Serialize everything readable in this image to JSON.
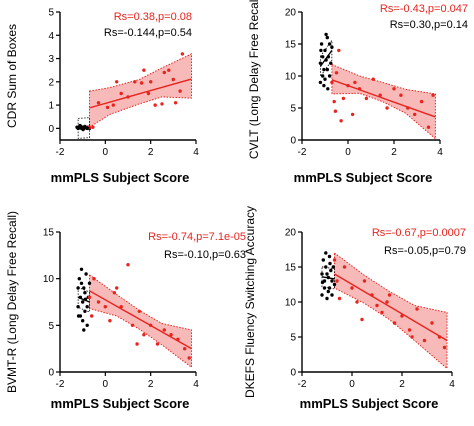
{
  "colors": {
    "red": "#e8241f",
    "black": "#000000",
    "band": "#f4a3a0",
    "axis": "#000000"
  },
  "chart_data": [
    {
      "type": "scatter",
      "xlabel": "mmPLS Subject Score",
      "ylabel": "CDR Sum of Boxes",
      "xlim": [
        -2,
        4
      ],
      "ylim": [
        -0.5,
        5
      ],
      "xticks": [
        -2,
        0,
        2,
        4
      ],
      "yticks": [
        0,
        1,
        2,
        3,
        4,
        5
      ],
      "xtick_labels": [
        "-2",
        "0",
        "2",
        "4"
      ],
      "ytick_labels": [
        "0",
        "1",
        "2",
        "3",
        "4",
        "5"
      ],
      "stats": [
        {
          "text": "Rs=0.38,p=0.08",
          "color": "red"
        },
        {
          "text": "Rs=-0.144,p=0.54",
          "color": "black"
        }
      ],
      "fits": {
        "black": {
          "x": [
            -1.2,
            -0.7
          ],
          "y": [
            0.0,
            0.03
          ]
        },
        "red": {
          "x": [
            -0.7,
            3.8
          ],
          "y": [
            0.88,
            2.12
          ]
        }
      },
      "band_red": {
        "x": [
          -0.7,
          0.2,
          1.5,
          2.5,
          3.8
        ],
        "upper": [
          1.6,
          1.75,
          2.1,
          2.6,
          3.2
        ],
        "lower": [
          0.05,
          0.6,
          1.05,
          1.35,
          1.3
        ]
      },
      "series": [
        {
          "color": "black",
          "points": [
            [
              -1.25,
              0.05
            ],
            [
              -1.2,
              0.0
            ],
            [
              -1.15,
              0.02
            ],
            [
              -1.1,
              0.1
            ],
            [
              -1.05,
              0.0
            ],
            [
              -1.0,
              0.05
            ],
            [
              -0.95,
              0.0
            ],
            [
              -0.9,
              0.08
            ],
            [
              -0.85,
              0.02
            ],
            [
              -0.8,
              0.0
            ],
            [
              -0.75,
              0.05
            ],
            [
              -0.7,
              0.0
            ],
            [
              -1.12,
              0.12
            ],
            [
              -0.98,
              -0.05
            ]
          ]
        },
        {
          "color": "red",
          "points": [
            [
              -0.7,
              0.05
            ],
            [
              -0.55,
              0.05
            ],
            [
              -0.3,
              1.1
            ],
            [
              0.1,
              0.9
            ],
            [
              0.35,
              1.0
            ],
            [
              0.7,
              1.5
            ],
            [
              1.0,
              1.35
            ],
            [
              1.3,
              2.0
            ],
            [
              1.6,
              1.95
            ],
            [
              1.9,
              1.5
            ],
            [
              2.2,
              1.0
            ],
            [
              2.6,
              2.4
            ],
            [
              3.0,
              2.1
            ],
            [
              3.3,
              1.6
            ],
            [
              3.4,
              3.2
            ],
            [
              2.8,
              2.5
            ],
            [
              0.5,
              2.0
            ],
            [
              1.7,
              2.5
            ],
            [
              2.0,
              2.0
            ],
            [
              2.5,
              1.05
            ],
            [
              3.1,
              1.1
            ]
          ]
        }
      ]
    },
    {
      "type": "scatter",
      "xlabel": "mmPLS Subject Score",
      "ylabel": "CVLT (Long Delay Free Recall)",
      "xlim": [
        -2,
        4
      ],
      "ylim": [
        0,
        20
      ],
      "xticks": [
        -2,
        0,
        2,
        4
      ],
      "yticks": [
        0,
        5,
        10,
        15,
        20
      ],
      "xtick_labels": [
        "-2",
        "0",
        "2",
        "4"
      ],
      "ytick_labels": [
        "0",
        "5",
        "10",
        "15",
        "20"
      ],
      "stats": [
        {
          "text": "Rs=-0.43,p=0.047",
          "color": "red"
        },
        {
          "text": "Rs=0.30,p=0.14",
          "color": "black"
        }
      ],
      "fits": {
        "black": {
          "x": [
            -1.2,
            -0.7
          ],
          "y": [
            11.5,
            14.0
          ]
        },
        "red": {
          "x": [
            -0.7,
            3.8
          ],
          "y": [
            9.4,
            3.6
          ]
        }
      },
      "band_red": {
        "x": [
          -0.7,
          0.5,
          1.5,
          2.5,
          3.8
        ],
        "upper": [
          11.8,
          10.0,
          9.0,
          7.9,
          7.2
        ],
        "lower": [
          7.2,
          7.3,
          6.0,
          4.2,
          0.2
        ]
      },
      "series": [
        {
          "color": "black",
          "points": [
            [
              -1.2,
              9.0
            ],
            [
              -1.2,
              12.0
            ],
            [
              -1.15,
              15.0
            ],
            [
              -1.1,
              10.0
            ],
            [
              -1.1,
              13.0
            ],
            [
              -1.05,
              11.0
            ],
            [
              -1.0,
              14.0
            ],
            [
              -1.0,
              9.5
            ],
            [
              -0.95,
              12.5
            ],
            [
              -0.9,
              16.0
            ],
            [
              -0.9,
              11.0
            ],
            [
              -0.85,
              13.0
            ],
            [
              -0.8,
              15.0
            ],
            [
              -0.8,
              10.0
            ],
            [
              -0.75,
              12.0
            ],
            [
              -0.7,
              14.5
            ],
            [
              -1.05,
              8.5
            ],
            [
              -0.95,
              16.5
            ],
            [
              -1.18,
              14.0
            ],
            [
              -0.88,
              8.0
            ]
          ]
        },
        {
          "color": "red",
          "points": [
            [
              -0.7,
              9.0
            ],
            [
              -0.6,
              6.0
            ],
            [
              -0.5,
              10.5
            ],
            [
              -0.4,
              14.0
            ],
            [
              -0.3,
              3.0
            ],
            [
              0.0,
              8.5
            ],
            [
              0.3,
              9.0
            ],
            [
              0.5,
              8.0
            ],
            [
              0.8,
              6.5
            ],
            [
              1.1,
              9.5
            ],
            [
              1.4,
              7.0
            ],
            [
              1.7,
              5.0
            ],
            [
              2.0,
              8.0
            ],
            [
              2.3,
              7.0
            ],
            [
              2.6,
              5.0
            ],
            [
              2.9,
              4.0
            ],
            [
              3.2,
              6.0
            ],
            [
              3.5,
              2.0
            ],
            [
              3.7,
              7.0
            ],
            [
              0.2,
              4.0
            ],
            [
              -0.2,
              6.5
            ],
            [
              -0.55,
              4.5
            ]
          ]
        }
      ]
    },
    {
      "type": "scatter",
      "xlabel": "mmPLS Subject Score",
      "ylabel": "BVMT-R (Long Delay Free Recall)",
      "xlim": [
        -2,
        4
      ],
      "ylim": [
        0,
        15
      ],
      "xticks": [
        -2,
        0,
        2,
        4
      ],
      "yticks": [
        0,
        5,
        10,
        15
      ],
      "xtick_labels": [
        "-2",
        "0",
        "2",
        "4"
      ],
      "ytick_labels": [
        "0",
        "5",
        "10",
        "15"
      ],
      "stats": [
        {
          "text": "Rs=-0.74,p=7.1e-05",
          "color": "red"
        },
        {
          "text": "Rs=-0.10,p=0.63",
          "color": "black"
        }
      ],
      "fits": {
        "black": {
          "x": [
            -1.2,
            -0.7
          ],
          "y": [
            8.0,
            7.5
          ]
        },
        "red": {
          "x": [
            -0.7,
            3.8
          ],
          "y": [
            8.7,
            2.5
          ]
        }
      },
      "band_red": {
        "x": [
          -0.7,
          0.5,
          1.5,
          2.5,
          3.8
        ],
        "upper": [
          10.4,
          8.3,
          6.6,
          5.2,
          4.5
        ],
        "lower": [
          6.8,
          6.0,
          4.6,
          2.9,
          0.5
        ]
      },
      "series": [
        {
          "color": "black",
          "points": [
            [
              -1.2,
              9.0
            ],
            [
              -1.2,
              7.0
            ],
            [
              -1.15,
              10.0
            ],
            [
              -1.1,
              8.0
            ],
            [
              -1.1,
              6.0
            ],
            [
              -1.05,
              9.5
            ],
            [
              -1.0,
              7.5
            ],
            [
              -1.0,
              5.5
            ],
            [
              -0.95,
              9.0
            ],
            [
              -0.9,
              8.5
            ],
            [
              -0.9,
              6.5
            ],
            [
              -0.85,
              10.5
            ],
            [
              -0.8,
              7.0
            ],
            [
              -0.8,
              5.0
            ],
            [
              -0.75,
              8.0
            ],
            [
              -0.7,
              9.5
            ],
            [
              -1.05,
              11.0
            ],
            [
              -0.95,
              4.5
            ],
            [
              -1.18,
              6.0
            ],
            [
              -0.88,
              7.8
            ]
          ]
        },
        {
          "color": "red",
          "points": [
            [
              -0.7,
              8.0
            ],
            [
              -0.6,
              6.0
            ],
            [
              -0.5,
              10.0
            ],
            [
              -0.3,
              7.5
            ],
            [
              0.0,
              7.0
            ],
            [
              0.2,
              5.5
            ],
            [
              0.5,
              9.0
            ],
            [
              0.7,
              7.0
            ],
            [
              1.0,
              11.5
            ],
            [
              1.2,
              5.0
            ],
            [
              1.5,
              6.5
            ],
            [
              1.7,
              4.0
            ],
            [
              2.0,
              5.0
            ],
            [
              2.3,
              3.0
            ],
            [
              2.6,
              4.5
            ],
            [
              2.9,
              4.0
            ],
            [
              3.2,
              3.5
            ],
            [
              3.5,
              2.5
            ],
            [
              3.7,
              1.5
            ],
            [
              0.4,
              8.5
            ],
            [
              1.4,
              3.0
            ]
          ]
        }
      ]
    },
    {
      "type": "scatter",
      "xlabel": "mmPLS Subject Score",
      "ylabel": "DKEFS Fluency Switching Accuracy",
      "xlim": [
        -2,
        4
      ],
      "ylim": [
        0,
        20
      ],
      "xticks": [
        -2,
        0,
        2,
        4
      ],
      "yticks": [
        0,
        5,
        10,
        15,
        20
      ],
      "xtick_labels": [
        "-2",
        "0",
        "2",
        "4"
      ],
      "ytick_labels": [
        "0",
        "5",
        "10",
        "15",
        "20"
      ],
      "stats": [
        {
          "text": "Rs=-0.67,p=0.0007",
          "color": "red"
        },
        {
          "text": "Rs=-0.05,p=0.79",
          "color": "black"
        }
      ],
      "fits": {
        "black": {
          "x": [
            -1.2,
            -0.7
          ],
          "y": [
            13.6,
            13.3
          ]
        },
        "red": {
          "x": [
            -0.7,
            3.8
          ],
          "y": [
            14.0,
            4.5
          ]
        }
      },
      "band_red": {
        "x": [
          -0.7,
          0.5,
          1.5,
          2.5,
          3.8
        ],
        "upper": [
          17.0,
          13.8,
          11.5,
          9.5,
          8.5
        ],
        "lower": [
          12.0,
          9.8,
          7.5,
          4.5,
          0.5
        ]
      },
      "series": [
        {
          "color": "black",
          "points": [
            [
              -1.2,
              14.0
            ],
            [
              -1.2,
              11.0
            ],
            [
              -1.15,
              16.0
            ],
            [
              -1.1,
              13.0
            ],
            [
              -1.1,
              12.0
            ],
            [
              -1.05,
              15.0
            ],
            [
              -1.0,
              14.0
            ],
            [
              -1.0,
              10.5
            ],
            [
              -0.95,
              13.5
            ],
            [
              -0.9,
              16.5
            ],
            [
              -0.9,
              12.0
            ],
            [
              -0.85,
              14.5
            ],
            [
              -0.8,
              13.0
            ],
            [
              -0.8,
              11.0
            ],
            [
              -0.75,
              15.0
            ],
            [
              -0.7,
              12.5
            ],
            [
              -1.05,
              17.0
            ],
            [
              -0.95,
              11.5
            ],
            [
              -1.18,
              12.8
            ],
            [
              -0.88,
              15.5
            ]
          ]
        },
        {
          "color": "red",
          "points": [
            [
              -0.7,
              16.0
            ],
            [
              -0.6,
              13.0
            ],
            [
              -0.5,
              10.5
            ],
            [
              -0.3,
              15.0
            ],
            [
              0.0,
              12.0
            ],
            [
              0.2,
              10.0
            ],
            [
              0.5,
              13.0
            ],
            [
              0.8,
              11.0
            ],
            [
              1.0,
              9.5
            ],
            [
              1.2,
              8.5
            ],
            [
              1.5,
              11.0
            ],
            [
              1.7,
              7.0
            ],
            [
              2.0,
              8.0
            ],
            [
              2.3,
              6.0
            ],
            [
              2.6,
              9.0
            ],
            [
              2.9,
              4.5
            ],
            [
              3.2,
              7.0
            ],
            [
              3.5,
              5.0
            ],
            [
              3.7,
              3.5
            ],
            [
              0.4,
              7.5
            ],
            [
              1.4,
              10.0
            ],
            [
              2.4,
              5.0
            ]
          ]
        }
      ]
    }
  ]
}
